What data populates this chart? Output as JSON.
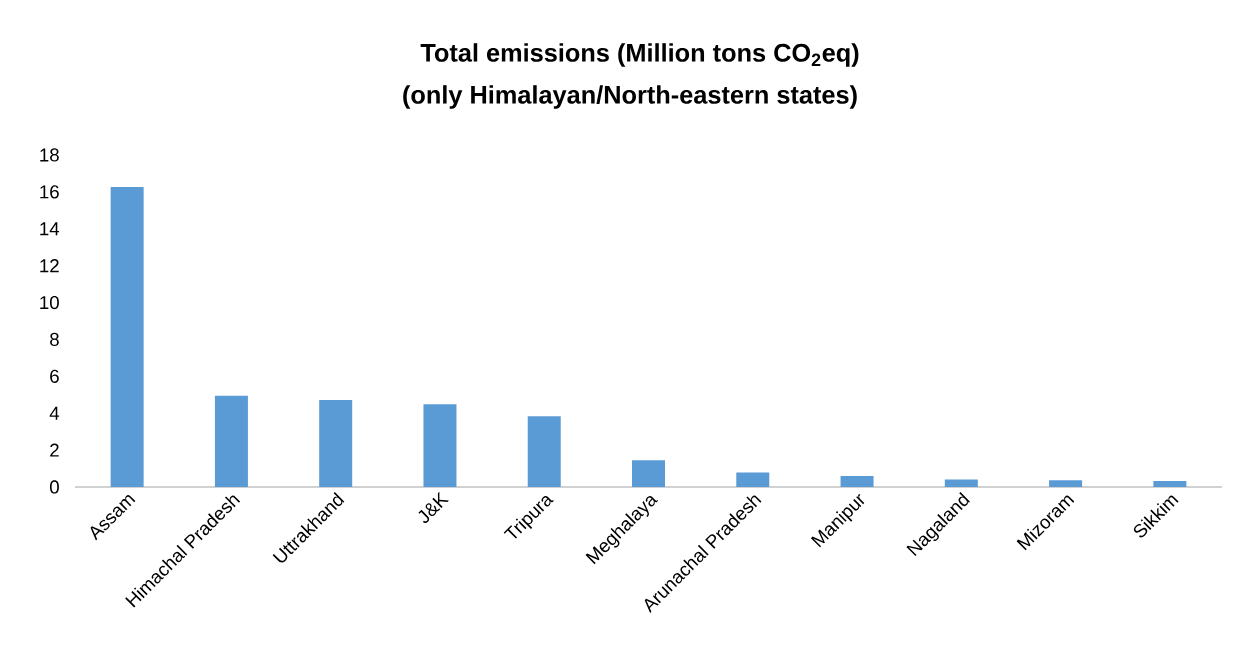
{
  "chart_data": {
    "type": "bar",
    "title": "Total emissions (Million tons CO$_{2}$eq)",
    "subtitle": "(only Himalayan/North-eastern states)",
    "categories": [
      "Assam",
      "Himachal Pradesh",
      "Uttrakhand",
      "J&K",
      "Tripura",
      "Meghalaya",
      "Arunachal Pradesh",
      "Manipur",
      "Nagaland",
      "Mizoram",
      "Sikkim"
    ],
    "values": [
      16.27,
      4.95,
      4.71,
      4.49,
      3.84,
      1.45,
      0.78,
      0.59,
      0.41,
      0.37,
      0.33
    ],
    "color": "#5b9bd5",
    "ylim": [
      0,
      18
    ],
    "yticks": [
      0,
      2,
      4,
      6,
      8,
      10,
      12,
      14,
      16,
      18
    ],
    "grid": false
  }
}
